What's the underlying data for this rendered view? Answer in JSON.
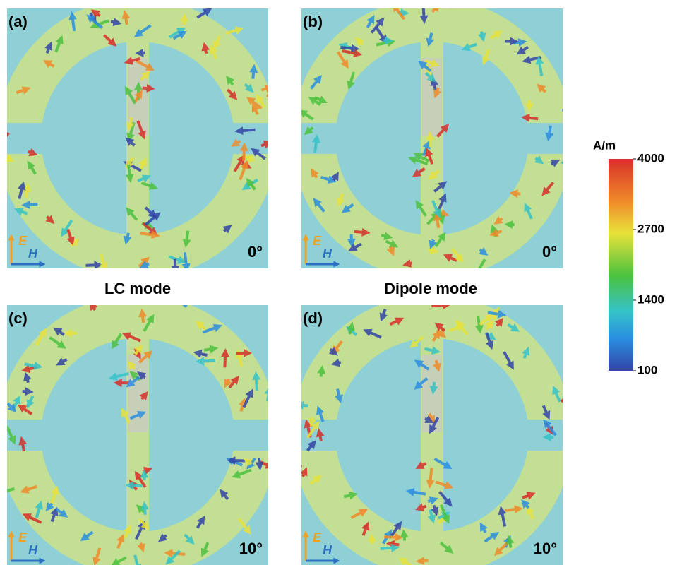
{
  "panels": [
    {
      "label": "(a)",
      "angle": "0°"
    },
    {
      "label": "(b)",
      "angle": "0°"
    },
    {
      "label": "(c)",
      "angle": "10°"
    },
    {
      "label": "(d)",
      "angle": "10°"
    }
  ],
  "modes": [
    "LC mode",
    "Dipole mode"
  ],
  "axes": {
    "e": "E",
    "h": "H"
  },
  "colorbar": {
    "unit": "A/m",
    "range": [
      100,
      4000
    ],
    "ticks": [
      4000,
      2700,
      1400,
      100
    ]
  }
}
